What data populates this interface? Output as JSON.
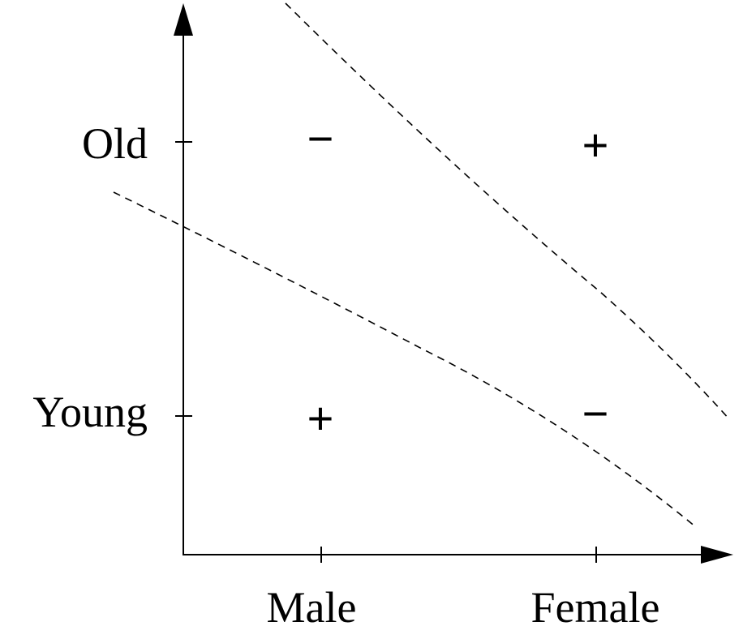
{
  "x_axis": {
    "ticks": [
      "Male",
      "Female"
    ]
  },
  "y_axis": {
    "ticks": [
      "Old",
      "Young"
    ]
  },
  "cells": [
    {
      "x": "Male",
      "y": "Old",
      "sign": "−"
    },
    {
      "x": "Female",
      "y": "Old",
      "sign": "+"
    },
    {
      "x": "Male",
      "y": "Young",
      "sign": "+"
    },
    {
      "x": "Female",
      "y": "Young",
      "sign": "−"
    }
  ],
  "boundaries": [
    {
      "style": "dashed"
    },
    {
      "style": "dashed"
    }
  ]
}
